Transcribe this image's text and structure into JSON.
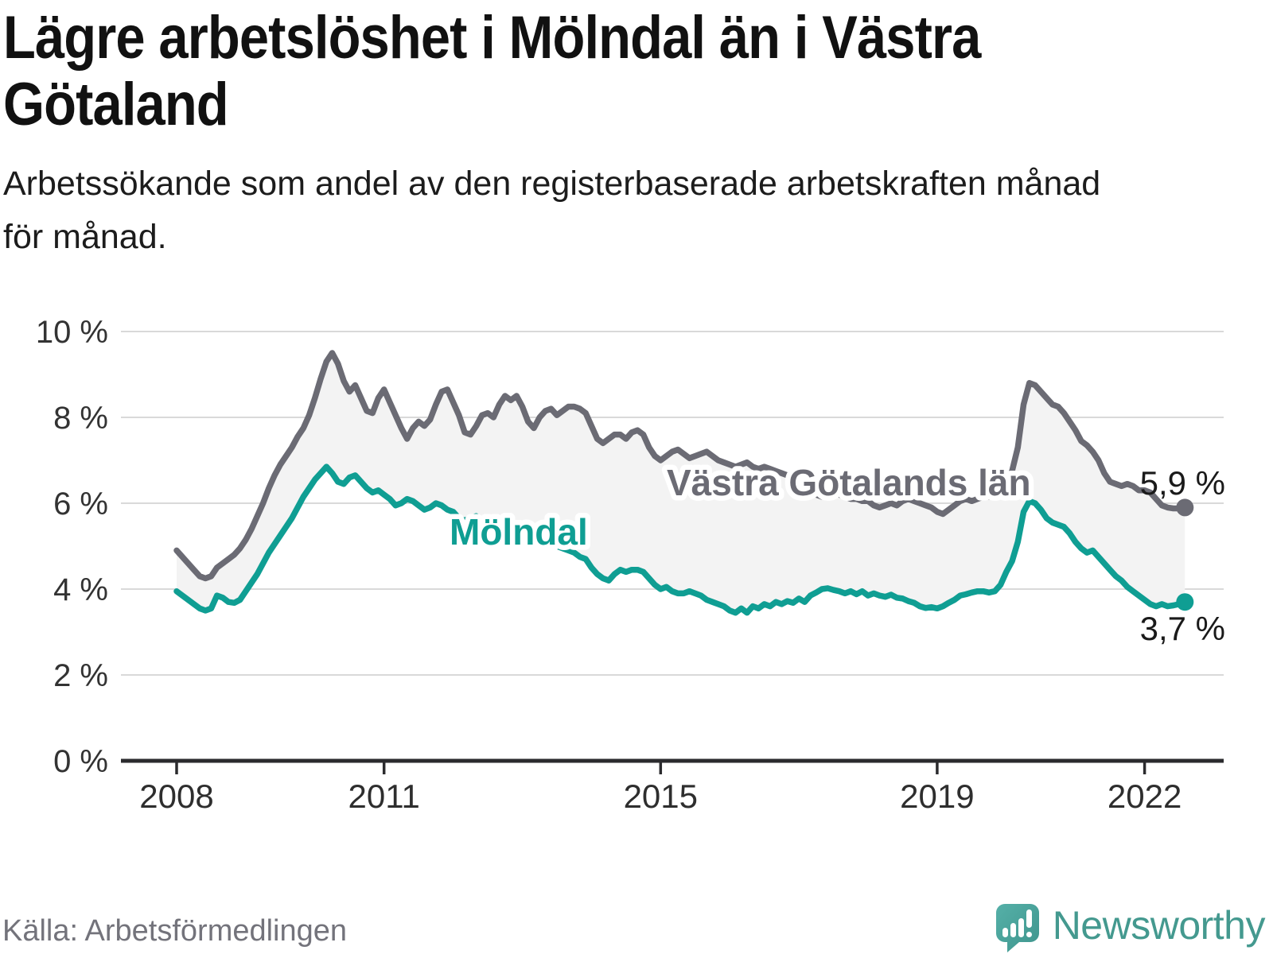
{
  "header": {
    "title_line1": "Lägre arbetslöshet i Mölndal än i Västra",
    "title_line2": "Götaland",
    "subtitle_line1": "Arbetssökande som andel av den registerbaserade arbetskraften månad",
    "subtitle_line2": "för månad."
  },
  "footer": {
    "source": "Källa: Arbetsförmedlingen",
    "brand": "Newsworthy"
  },
  "colors": {
    "vastra_gotaland_line": "#6b6b74",
    "molndal_line": "#0f9e93",
    "fill_between": "#f3f3f3",
    "gridline": "#d9d9d9",
    "axis": "#2b2b2e",
    "axis_text": "#333333",
    "value_label": "#1a1a1a",
    "source_text": "#73737b",
    "brand_teal": "#44998f"
  },
  "chart_data": {
    "type": "line",
    "title": "Lägre arbetslöshet i Mölndal än i Västra Götaland",
    "subtitle": "Arbetssökande som andel av den registerbaserade arbetskraften månad för månad.",
    "frequency": "monthly",
    "x_start": "2008-01",
    "x_end": "2022-08",
    "xlabel": "",
    "ylabel": "",
    "ylim": [
      0,
      10
    ],
    "grid": "horizontal",
    "legend_position": "inline-labels",
    "x_tick_years": [
      2008,
      2011,
      2015,
      2019,
      2022
    ],
    "y_tick_values": [
      0,
      2,
      4,
      6,
      8,
      10
    ],
    "y_tick_labels": [
      "0 %",
      "2 %",
      "4 %",
      "6 %",
      "8 %",
      "10 %"
    ],
    "series": [
      {
        "name": "Västra Götalands län",
        "color": "#6b6b74",
        "end_value": 5.9,
        "end_label": "5,9 %",
        "values": [
          4.9,
          4.75,
          4.6,
          4.45,
          4.3,
          4.25,
          4.3,
          4.5,
          4.6,
          4.7,
          4.8,
          4.95,
          5.15,
          5.4,
          5.7,
          6.0,
          6.35,
          6.65,
          6.9,
          7.1,
          7.3,
          7.55,
          7.75,
          8.05,
          8.45,
          8.9,
          9.3,
          9.5,
          9.25,
          8.85,
          8.6,
          8.75,
          8.45,
          8.15,
          8.1,
          8.45,
          8.65,
          8.35,
          8.05,
          7.75,
          7.5,
          7.75,
          7.9,
          7.8,
          7.95,
          8.3,
          8.6,
          8.65,
          8.35,
          8.05,
          7.65,
          7.6,
          7.8,
          8.05,
          8.1,
          8.0,
          8.3,
          8.5,
          8.4,
          8.5,
          8.25,
          7.9,
          7.75,
          8.0,
          8.15,
          8.2,
          8.05,
          8.15,
          8.25,
          8.25,
          8.2,
          8.1,
          7.8,
          7.5,
          7.4,
          7.5,
          7.6,
          7.6,
          7.5,
          7.65,
          7.7,
          7.6,
          7.3,
          7.1,
          7.0,
          7.1,
          7.2,
          7.25,
          7.15,
          7.05,
          7.1,
          7.15,
          7.2,
          7.1,
          7.0,
          6.95,
          6.9,
          6.85,
          6.9,
          6.95,
          6.85,
          6.8,
          6.85,
          6.8,
          6.75,
          6.7,
          6.65,
          6.55,
          6.4,
          6.3,
          6.25,
          6.2,
          6.15,
          6.2,
          6.25,
          6.2,
          6.15,
          6.1,
          6.1,
          6.05,
          6.05,
          5.95,
          5.9,
          5.95,
          6.0,
          5.95,
          6.05,
          6.1,
          6.05,
          6.0,
          5.95,
          5.9,
          5.8,
          5.75,
          5.85,
          5.95,
          6.05,
          6.1,
          6.05,
          6.1,
          6.15,
          6.15,
          6.2,
          6.35,
          6.55,
          6.75,
          7.3,
          8.3,
          8.8,
          8.75,
          8.6,
          8.45,
          8.3,
          8.25,
          8.1,
          7.9,
          7.7,
          7.45,
          7.35,
          7.2,
          7.0,
          6.7,
          6.5,
          6.45,
          6.4,
          6.45,
          6.4,
          6.3,
          6.3,
          6.25,
          6.1,
          5.95,
          5.9,
          5.88,
          5.88,
          5.9
        ]
      },
      {
        "name": "Mölndal",
        "color": "#0f9e93",
        "end_value": 3.7,
        "end_label": "3,7 %",
        "values": [
          3.95,
          3.85,
          3.75,
          3.65,
          3.55,
          3.5,
          3.55,
          3.85,
          3.8,
          3.7,
          3.68,
          3.75,
          3.95,
          4.15,
          4.35,
          4.6,
          4.85,
          5.05,
          5.25,
          5.45,
          5.65,
          5.9,
          6.15,
          6.35,
          6.55,
          6.7,
          6.85,
          6.7,
          6.5,
          6.45,
          6.6,
          6.65,
          6.5,
          6.35,
          6.25,
          6.3,
          6.2,
          6.1,
          5.95,
          6.0,
          6.1,
          6.05,
          5.95,
          5.85,
          5.9,
          6.0,
          5.95,
          5.85,
          5.8,
          5.65,
          5.6,
          5.65,
          5.7,
          5.6,
          5.55,
          5.6,
          5.5,
          5.45,
          5.4,
          5.35,
          5.3,
          5.2,
          5.1,
          5.15,
          5.2,
          5.1,
          5.0,
          4.95,
          4.9,
          4.85,
          4.75,
          4.7,
          4.5,
          4.35,
          4.25,
          4.2,
          4.35,
          4.45,
          4.4,
          4.45,
          4.45,
          4.4,
          4.25,
          4.1,
          4.0,
          4.05,
          3.95,
          3.9,
          3.9,
          3.95,
          3.9,
          3.85,
          3.75,
          3.7,
          3.65,
          3.6,
          3.5,
          3.45,
          3.55,
          3.45,
          3.6,
          3.55,
          3.65,
          3.6,
          3.7,
          3.65,
          3.72,
          3.68,
          3.78,
          3.7,
          3.85,
          3.92,
          4.0,
          4.02,
          3.98,
          3.95,
          3.9,
          3.95,
          3.88,
          3.95,
          3.85,
          3.9,
          3.85,
          3.82,
          3.87,
          3.8,
          3.78,
          3.72,
          3.68,
          3.6,
          3.56,
          3.58,
          3.55,
          3.6,
          3.68,
          3.75,
          3.85,
          3.88,
          3.92,
          3.95,
          3.95,
          3.92,
          3.95,
          4.1,
          4.4,
          4.65,
          5.1,
          5.8,
          6.05,
          6.0,
          5.85,
          5.65,
          5.55,
          5.5,
          5.45,
          5.3,
          5.1,
          4.95,
          4.85,
          4.9,
          4.75,
          4.6,
          4.45,
          4.3,
          4.2,
          4.05,
          3.95,
          3.85,
          3.75,
          3.65,
          3.6,
          3.65,
          3.6,
          3.62,
          3.65,
          3.7
        ]
      }
    ]
  }
}
